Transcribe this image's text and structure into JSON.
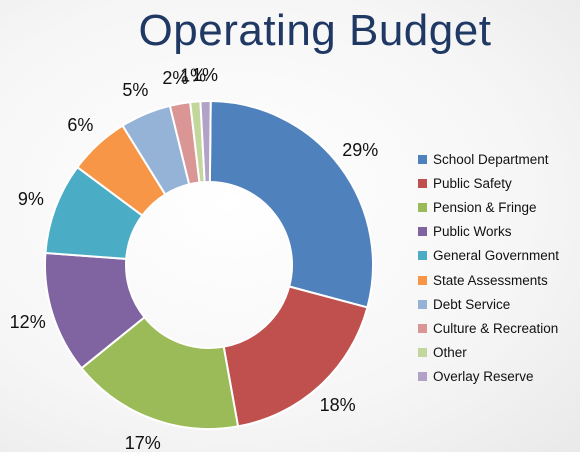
{
  "chart_data": {
    "type": "pie",
    "variant": "donut",
    "title": "Operating Budget",
    "legend_position": "right",
    "slices": [
      {
        "label": "School Department",
        "value": 29,
        "display": "29%",
        "color": "#4f81bd"
      },
      {
        "label": "Public Safety",
        "value": 18,
        "display": "18%",
        "color": "#c0504d"
      },
      {
        "label": "Pension & Fringe",
        "value": 17,
        "display": "17%",
        "color": "#9bbb59"
      },
      {
        "label": "Public Works",
        "value": 12,
        "display": "12%",
        "color": "#8064a2"
      },
      {
        "label": "General Government",
        "value": 9,
        "display": "9%",
        "color": "#4bacc6"
      },
      {
        "label": "State Assessments",
        "value": 6,
        "display": "6%",
        "color": "#f79646"
      },
      {
        "label": "Debt Service",
        "value": 5,
        "display": "5%",
        "color": "#95b3d7"
      },
      {
        "label": "Culture & Recreation",
        "value": 2,
        "display": "2%",
        "color": "#da9694"
      },
      {
        "label": "Other",
        "value": 1,
        "display": "1%",
        "color": "#c3d69b"
      },
      {
        "label": "Overlay Reserve",
        "value": 1,
        "display": "1%",
        "color": "#b3a2c7"
      }
    ]
  }
}
